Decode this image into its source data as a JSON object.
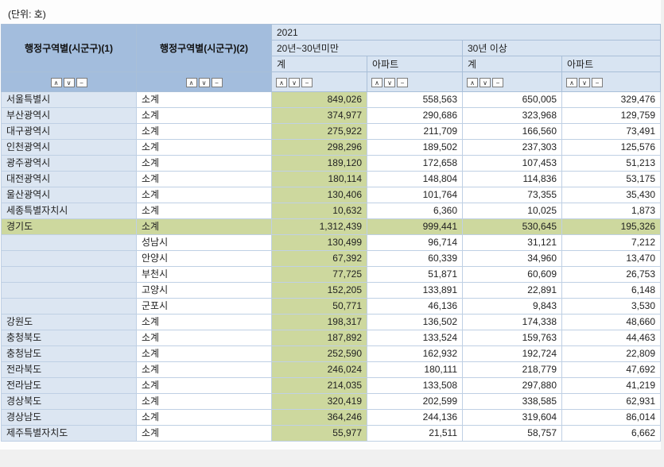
{
  "page": {
    "unit_label": "(단위: 호)"
  },
  "colors": {
    "header-dim": "#a3bddd",
    "header-light": "#d8e4f2",
    "green": "#cdd89e",
    "region-col": "#dce6f2",
    "border": "#a9bfd8",
    "row-border": "#bfd0e4"
  },
  "table": {
    "header": {
      "dim1": "행정구역별(시군구)(1)",
      "dim2": "행정구역별(시군구)(2)",
      "year": "2021",
      "groups": [
        {
          "label": "20년~30년미만",
          "cols": [
            "계",
            "아파트"
          ]
        },
        {
          "label": "30년 이상",
          "cols": [
            "계",
            "아파트"
          ]
        }
      ],
      "sort_icons": [
        "∧",
        "∨",
        "−"
      ]
    },
    "rows": [
      {
        "region1": "서울특별시",
        "region2": "소계",
        "values": [
          "849,026",
          "558,563",
          "650,005",
          "329,476"
        ],
        "highlight": false
      },
      {
        "region1": "부산광역시",
        "region2": "소계",
        "values": [
          "374,977",
          "290,686",
          "323,968",
          "129,759"
        ],
        "highlight": false
      },
      {
        "region1": "대구광역시",
        "region2": "소계",
        "values": [
          "275,922",
          "211,709",
          "166,560",
          "73,491"
        ],
        "highlight": false
      },
      {
        "region1": "인천광역시",
        "region2": "소계",
        "values": [
          "298,296",
          "189,502",
          "237,303",
          "125,576"
        ],
        "highlight": false
      },
      {
        "region1": "광주광역시",
        "region2": "소계",
        "values": [
          "189,120",
          "172,658",
          "107,453",
          "51,213"
        ],
        "highlight": false
      },
      {
        "region1": "대전광역시",
        "region2": "소계",
        "values": [
          "180,114",
          "148,804",
          "114,836",
          "53,175"
        ],
        "highlight": false
      },
      {
        "region1": "울산광역시",
        "region2": "소계",
        "values": [
          "130,406",
          "101,764",
          "73,355",
          "35,430"
        ],
        "highlight": false
      },
      {
        "region1": "세종특별자치시",
        "region2": "소계",
        "values": [
          "10,632",
          "6,360",
          "10,025",
          "1,873"
        ],
        "highlight": false
      },
      {
        "region1": "경기도",
        "region2": "소계",
        "values": [
          "1,312,439",
          "999,441",
          "530,645",
          "195,326"
        ],
        "highlight": true
      },
      {
        "region1": "",
        "region2": "성남시",
        "values": [
          "130,499",
          "96,714",
          "31,121",
          "7,212"
        ],
        "highlight": false
      },
      {
        "region1": "",
        "region2": "안양시",
        "values": [
          "67,392",
          "60,339",
          "34,960",
          "13,470"
        ],
        "highlight": false
      },
      {
        "region1": "",
        "region2": "부천시",
        "values": [
          "77,725",
          "51,871",
          "60,609",
          "26,753"
        ],
        "highlight": false
      },
      {
        "region1": "",
        "region2": "고양시",
        "values": [
          "152,205",
          "133,891",
          "22,891",
          "6,148"
        ],
        "highlight": false
      },
      {
        "region1": "",
        "region2": "군포시",
        "values": [
          "50,771",
          "46,136",
          "9,843",
          "3,530"
        ],
        "highlight": false
      },
      {
        "region1": "강원도",
        "region2": "소계",
        "values": [
          "198,317",
          "136,502",
          "174,338",
          "48,660"
        ],
        "highlight": false
      },
      {
        "region1": "충청북도",
        "region2": "소계",
        "values": [
          "187,892",
          "133,524",
          "159,763",
          "44,463"
        ],
        "highlight": false
      },
      {
        "region1": "충청남도",
        "region2": "소계",
        "values": [
          "252,590",
          "162,932",
          "192,724",
          "22,809"
        ],
        "highlight": false
      },
      {
        "region1": "전라북도",
        "region2": "소계",
        "values": [
          "246,024",
          "180,111",
          "218,779",
          "47,692"
        ],
        "highlight": false
      },
      {
        "region1": "전라남도",
        "region2": "소계",
        "values": [
          "214,035",
          "133,508",
          "297,880",
          "41,219"
        ],
        "highlight": false
      },
      {
        "region1": "경상북도",
        "region2": "소계",
        "values": [
          "320,419",
          "202,599",
          "338,585",
          "62,931"
        ],
        "highlight": false
      },
      {
        "region1": "경상남도",
        "region2": "소계",
        "values": [
          "364,246",
          "244,136",
          "319,604",
          "86,014"
        ],
        "highlight": false
      },
      {
        "region1": "제주특별자치도",
        "region2": "소계",
        "values": [
          "55,977",
          "21,511",
          "58,757",
          "6,662"
        ],
        "highlight": false
      }
    ]
  }
}
